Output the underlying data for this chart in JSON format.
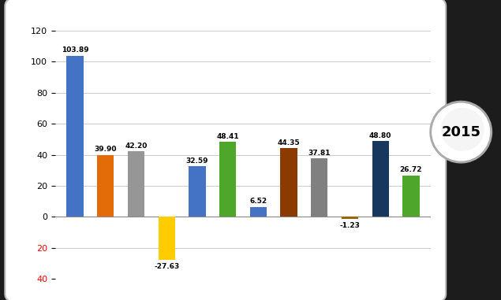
{
  "bars": [
    {
      "x": 0,
      "value": 103.89,
      "color": "#4472C4"
    },
    {
      "x": 1,
      "value": 39.9,
      "color": "#E36C09"
    },
    {
      "x": 2,
      "value": 42.2,
      "color": "#969696"
    },
    {
      "x": 3,
      "value": -27.63,
      "color": "#FFCC00"
    },
    {
      "x": 4,
      "value": 32.59,
      "color": "#4472C4"
    },
    {
      "x": 5,
      "value": 48.41,
      "color": "#4EA72A"
    },
    {
      "x": 6,
      "value": 6.52,
      "color": "#4472C4"
    },
    {
      "x": 7,
      "value": 44.35,
      "color": "#8B3A00"
    },
    {
      "x": 8,
      "value": 37.81,
      "color": "#808080"
    },
    {
      "x": 9,
      "value": -1.23,
      "color": "#9C6500"
    },
    {
      "x": 10,
      "value": 48.8,
      "color": "#17375E"
    },
    {
      "x": 11,
      "value": 26.72,
      "color": "#4EA72A"
    }
  ],
  "ylim": [
    -40,
    130
  ],
  "yticks": [
    -40,
    -20,
    0,
    20,
    40,
    60,
    80,
    100,
    120
  ],
  "year_label": "2015",
  "bg_color": "#FFFFFF",
  "outer_bg": "#1C1C1C",
  "grid_color": "#CCCCCC",
  "bar_width": 0.55
}
